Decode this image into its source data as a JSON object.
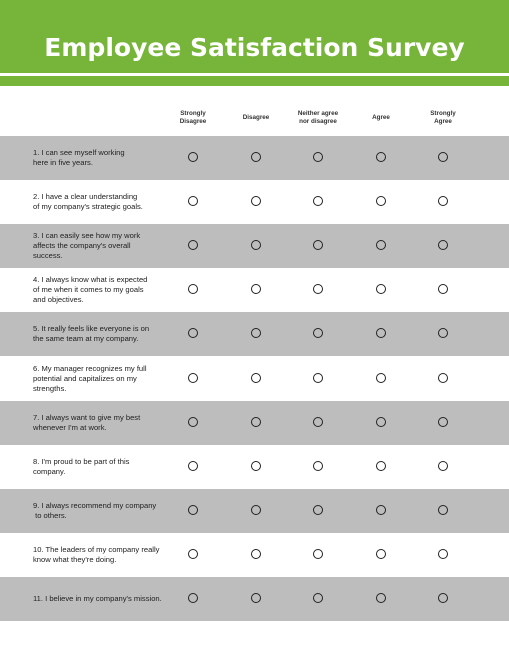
{
  "title": "Employee Satisfaction Survey",
  "scale": [
    {
      "line1": "Strongly",
      "line2": "Disagree"
    },
    {
      "line1": "Disagree",
      "line2": ""
    },
    {
      "line1": "Neither agree",
      "line2": "nor disagree"
    },
    {
      "line1": "Agree",
      "line2": ""
    },
    {
      "line1": "Strongly",
      "line2": "Agree"
    }
  ],
  "questions": [
    {
      "lines": [
        "1. I can see myself working",
        "here in five years."
      ]
    },
    {
      "lines": [
        "2. I have a clear understanding",
        "of my company's strategic goals."
      ]
    },
    {
      "lines": [
        "3. I can easily see how my work",
        "affects the company's overall",
        "success."
      ]
    },
    {
      "lines": [
        "4. I always know what is expected",
        "of me when it comes to my goals",
        "and objectives."
      ]
    },
    {
      "lines": [
        "5. It really feels like everyone is on",
        "the same team at my company."
      ]
    },
    {
      "lines": [
        "6. My manager recognizes my full",
        "potential and capitalizes on my",
        "strengths."
      ]
    },
    {
      "lines": [
        "7. I always want to give my best",
        "whenever I'm at work."
      ]
    },
    {
      "lines": [
        "8. I'm proud to be part of this",
        "company."
      ]
    },
    {
      "lines": [
        "9. I always recommend my company",
        " to others."
      ]
    },
    {
      "lines": [
        "10. The leaders of my company really",
        "know what they're doing."
      ]
    },
    {
      "lines": [
        "11. I believe in my company's mission."
      ]
    }
  ],
  "colors": {
    "header": "#76b53a",
    "shade": "#bdbdbd"
  }
}
